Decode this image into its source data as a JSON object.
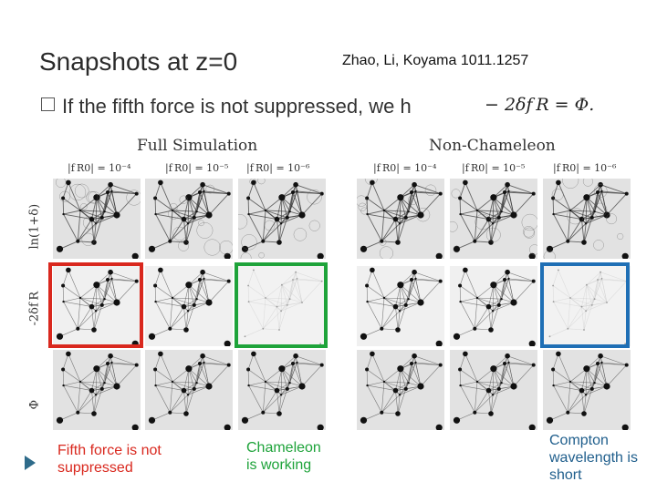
{
  "slide": {
    "title": "Snapshots at z=0",
    "reference": "Zhao, Li, Koyama 1011.1257",
    "bullet_text": "If the fifth force is not suppressed, we h",
    "formula": "− 2δf R = Φ."
  },
  "figure": {
    "groups": [
      "Full Simulation",
      "Non-Chameleon"
    ],
    "columns": [
      "|f R0| = 10⁻⁴",
      "|f R0| = 10⁻⁵",
      "|f R0| = 10⁻⁶"
    ],
    "rows": [
      "ln(1+δ)",
      "-2δf R",
      "Φ"
    ]
  },
  "captions": {
    "red": "Fifth force is not suppressed",
    "green": "Chameleon is working",
    "blue": "Compton wavelength is short"
  },
  "colors": {
    "red": "#d9281e",
    "green": "#1ea33a",
    "blue": "#1f6fb5",
    "caption": "#1f5e8c"
  }
}
